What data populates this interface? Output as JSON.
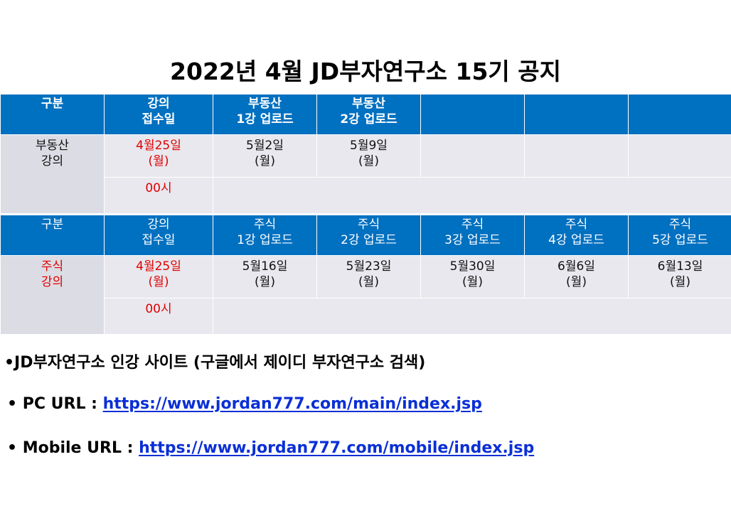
{
  "title": "2022년 4월 JD부자연구소 15기 공지",
  "table_realestate": {
    "headers": [
      "구분",
      "강의\n접수일",
      "부동산\n1강 업로드",
      "부동산\n2강 업로드",
      "",
      "",
      ""
    ],
    "row1": [
      "부동산\n강의",
      "4월25일\n(월)",
      "5월2일\n(월)",
      "5월9일\n(월)",
      "",
      "",
      ""
    ],
    "row2_time": "00시"
  },
  "table_stock": {
    "headers": [
      "구분",
      "강의\n접수일",
      "주식\n1강 업로드",
      "주식\n2강 업로드",
      "주식\n3강 업로드",
      "주식\n4강 업로드",
      "주식\n5강 업로드"
    ],
    "row1": [
      "주식\n강의",
      "4월25일\n(월)",
      "5월16일\n(월)",
      "5월23일\n(월)",
      "5월30일\n(월)",
      "6월6일\n(월)",
      "6월13일\n(월)"
    ],
    "row2_time": "00시"
  },
  "notes": {
    "site_line": "•JD부자연구소 인강 사이트 (구글에서 제이디 부자연구소 검색)",
    "pc_prefix": "• PC URL : ",
    "pc_url": "https://www.jordan777.com/main/index.jsp",
    "mobile_prefix": "• Mobile URL : ",
    "mobile_url": "https://www.jordan777.com/mobile/index.jsp"
  },
  "colors": {
    "header_bg": "#0070c0",
    "cell_bg": "#e8e8ee",
    "accent_red": "#e00000",
    "link_blue": "#0a2fd6"
  }
}
